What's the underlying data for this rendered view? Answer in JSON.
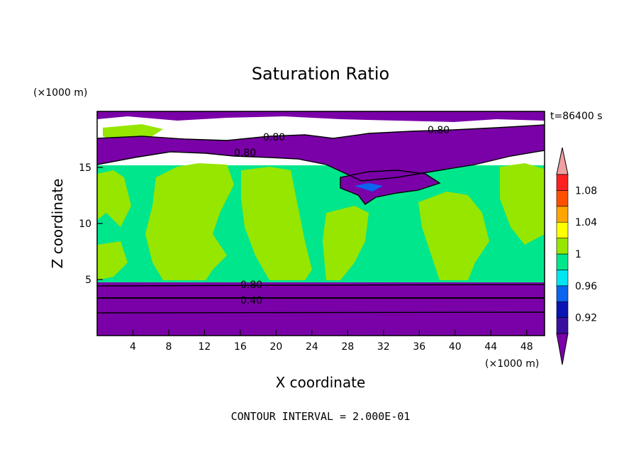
{
  "chart_data": {
    "type": "heatmap",
    "title": "Saturation Ratio",
    "xlabel": "X coordinate",
    "ylabel": "Z coordinate",
    "x_unit": "(×1000 m)",
    "y_unit": "(×1000 m)",
    "time_label": "t=86400 s",
    "footer": "CONTOUR INTERVAL = 2.000E-01",
    "xlim": [
      0,
      50
    ],
    "ylim": [
      0,
      20
    ],
    "x_ticks": [
      4,
      8,
      12,
      16,
      20,
      24,
      28,
      32,
      36,
      40,
      44,
      48
    ],
    "y_ticks": [
      5,
      10,
      15
    ],
    "colorbar": {
      "levels": [
        0.9,
        0.92,
        0.94,
        0.96,
        0.98,
        1.0,
        1.02,
        1.04,
        1.06,
        1.08,
        1.1
      ],
      "tick_labels": [
        "0.92",
        "0.96",
        "1",
        "1.04",
        "1.08"
      ],
      "colors": [
        "#7a00a8",
        "#3a0fa0",
        "#0a14b4",
        "#0a64f0",
        "#00e6f0",
        "#00e68c",
        "#96e600",
        "#ffff00",
        "#ffa500",
        "#ff5000",
        "#ff2020",
        "#f0a0a0"
      ]
    },
    "contour_labels": [
      "0.80",
      "0.80",
      "0.80",
      "0.80",
      "0.40"
    ],
    "regions": [
      {
        "name": "lower dry layer",
        "z": [
          0,
          4.7
        ],
        "value": 0.8
      },
      {
        "name": "moist layer",
        "z": [
          4.7,
          15
        ],
        "value": 0.99
      },
      {
        "name": "upper dry band",
        "z": [
          15,
          17.2
        ],
        "value": 0.8
      },
      {
        "name": "top moist layer",
        "z": [
          17.2,
          19
        ],
        "value": 0.99
      },
      {
        "name": "top dry",
        "z": [
          19,
          20
        ],
        "value": 0.8
      }
    ]
  }
}
